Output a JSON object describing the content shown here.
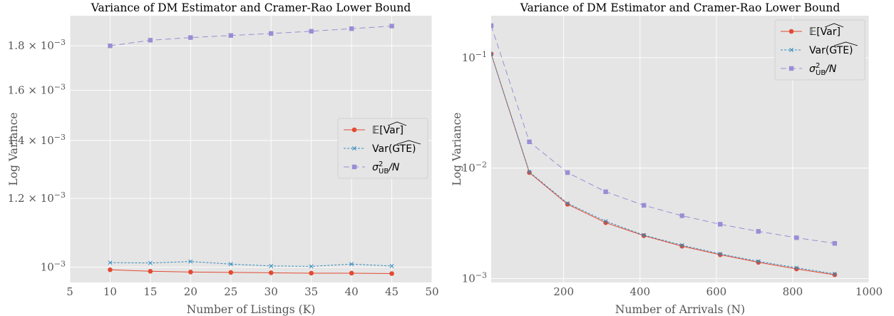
{
  "chart_data": [
    {
      "type": "line",
      "title": "Variance of DM Estimator and Cramer-Rao Lower Bound",
      "xlabel": "Number of Listings (K)",
      "ylabel": "Log Variance",
      "xlim": [
        5,
        50
      ],
      "ylim": [
        0.00096,
        0.00195
      ],
      "yscale": "log",
      "grid": true,
      "legend_position": "center-right",
      "x_ticks": [
        5,
        10,
        15,
        20,
        25,
        30,
        35,
        40,
        45,
        50
      ],
      "y_ticks": [
        {
          "value": 0.001,
          "mantissa": "",
          "exponent": "−3"
        },
        {
          "value": 0.0012,
          "mantissa": "1.2",
          "exponent": "−3"
        },
        {
          "value": 0.0014,
          "mantissa": "1.4",
          "exponent": "−3"
        },
        {
          "value": 0.0016,
          "mantissa": "1.6",
          "exponent": "−3"
        },
        {
          "value": 0.0018,
          "mantissa": "1.8",
          "exponent": "−3"
        }
      ],
      "x": [
        10,
        15,
        20,
        25,
        30,
        35,
        40,
        45
      ],
      "series": [
        {
          "name": "E[Var^]",
          "label_main": "𝔼[Var]",
          "color": "#E24A33",
          "marker": "circle",
          "dash": "",
          "values": [
            0.000993,
            0.000989,
            0.000987,
            0.000986,
            0.000985,
            0.000984,
            0.000984,
            0.000983
          ]
        },
        {
          "name": "Var(GTE^)",
          "label_main": "Var(GTE)",
          "color": "#348ABD",
          "marker": "x",
          "dash": "3,2",
          "values": [
            0.001012,
            0.001011,
            0.001015,
            0.001008,
            0.001003,
            0.001002,
            0.001008,
            0.001003
          ]
        },
        {
          "name": "σ²_UB/N",
          "label_main": "σ",
          "label_sup": "2",
          "label_sub": "UB",
          "label_tail": "/N",
          "color": "#988ED5",
          "marker": "square",
          "dash": "8,5",
          "values": [
            0.0018,
            0.001827,
            0.00184,
            0.00185,
            0.00186,
            0.001871,
            0.001884,
            0.001897
          ]
        }
      ]
    },
    {
      "type": "line",
      "title": "Variance of DM Estimator and Cramer-Rao Lower Bound",
      "xlabel": "Number of Arrivals (N)",
      "ylabel": "Log Variance",
      "xlim": [
        10,
        1000
      ],
      "ylim": [
        0.00092,
        0.24
      ],
      "yscale": "log",
      "grid": true,
      "legend_position": "upper-right",
      "x_ticks": [
        200,
        400,
        600,
        800,
        1000
      ],
      "y_ticks": [
        {
          "value": 0.001,
          "mantissa": "",
          "exponent": "−3"
        },
        {
          "value": 0.01,
          "mantissa": "",
          "exponent": "−2"
        },
        {
          "value": 0.1,
          "mantissa": "",
          "exponent": "−1"
        }
      ],
      "x": [
        10,
        110,
        210,
        310,
        410,
        510,
        610,
        710,
        810,
        910
      ],
      "series": [
        {
          "name": "E[Var^]",
          "label_main": "𝔼[Var]",
          "color": "#E24A33",
          "marker": "circle",
          "dash": "",
          "values": [
            0.108,
            0.0091,
            0.0047,
            0.0032,
            0.00244,
            0.00196,
            0.00164,
            0.0014,
            0.00122,
            0.00108
          ]
        },
        {
          "name": "Var(GTE^)",
          "label_main": "Var(GTE)",
          "color": "#348ABD",
          "marker": "x",
          "dash": "3,2",
          "values": [
            0.108,
            0.0092,
            0.0048,
            0.0033,
            0.00247,
            0.002,
            0.00167,
            0.00143,
            0.00125,
            0.0011
          ]
        },
        {
          "name": "σ²_UB/N",
          "label_main": "σ",
          "label_sup": "2",
          "label_sub": "UB",
          "label_tail": "/N",
          "color": "#988ED5",
          "marker": "square",
          "dash": "8,5",
          "values": [
            0.195,
            0.0173,
            0.0091,
            0.0061,
            0.0046,
            0.0037,
            0.0031,
            0.00267,
            0.00234,
            0.00208
          ]
        }
      ]
    }
  ]
}
